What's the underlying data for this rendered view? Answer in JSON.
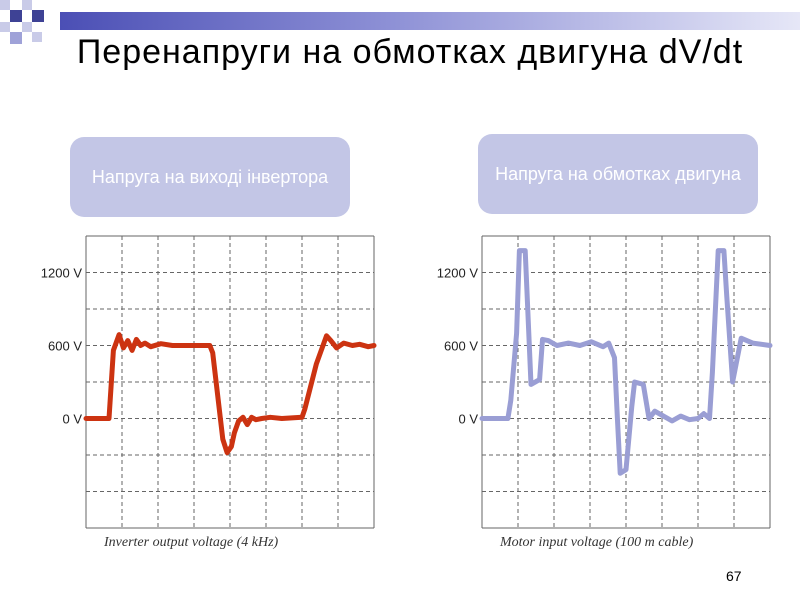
{
  "slide": {
    "title": "Перенапруги на обмотках двигуна dV/dt",
    "page_number": "67",
    "colors": {
      "accent_bar": "#4b4fb5",
      "pill_bg": "#c3c6e6",
      "pill_text": "#ffffff"
    },
    "decor_icon": "squares-pattern"
  },
  "labels": {
    "inverter": "Напруга на виході інвертора",
    "motor": "Напруга на обмотках двигуна"
  },
  "chart_data": [
    {
      "type": "line",
      "title": "",
      "caption": "Inverter output voltage (4 kHz)",
      "xlabel": "",
      "ylabel": "",
      "y_ticks": [
        "1200 V",
        "600 V",
        "0 V"
      ],
      "ylim": [
        -900,
        1500
      ],
      "xlim": [
        0,
        1
      ],
      "grid": true,
      "color": "#cc3311",
      "series": [
        {
          "x": [
            0,
            0.08,
            0.095,
            0.115,
            0.13,
            0.145,
            0.16,
            0.175,
            0.19,
            0.205,
            0.225,
            0.26,
            0.3,
            0.43,
            0.44,
            0.475,
            0.49,
            0.505,
            0.515,
            0.53,
            0.545,
            0.56,
            0.575,
            0.59,
            0.61,
            0.64,
            0.68,
            0.75,
            0.76,
            0.8,
            0.835,
            0.85,
            0.87,
            0.895,
            0.925,
            0.95,
            0.98,
            1.0
          ],
          "y": [
            0,
            0,
            560,
            690,
            580,
            640,
            560,
            650,
            600,
            620,
            590,
            615,
            600,
            600,
            540,
            -170,
            -280,
            -230,
            -120,
            -20,
            10,
            -50,
            10,
            -10,
            0,
            10,
            0,
            10,
            80,
            450,
            680,
            640,
            580,
            620,
            600,
            610,
            590,
            600
          ]
        }
      ]
    },
    {
      "type": "line",
      "title": "",
      "caption": "Motor input voltage (100 m cable)",
      "xlabel": "",
      "ylabel": "",
      "y_ticks": [
        "1200 V",
        "600 V",
        "0 V"
      ],
      "ylim": [
        -900,
        1500
      ],
      "xlim": [
        0,
        1
      ],
      "grid": true,
      "color": "#9a9ed4",
      "series": [
        {
          "x": [
            0,
            0.09,
            0.1,
            0.12,
            0.13,
            0.15,
            0.17,
            0.2,
            0.21,
            0.23,
            0.26,
            0.3,
            0.34,
            0.38,
            0.42,
            0.44,
            0.46,
            0.47,
            0.48,
            0.5,
            0.52,
            0.53,
            0.56,
            0.58,
            0.6,
            0.63,
            0.66,
            0.69,
            0.72,
            0.75,
            0.77,
            0.79,
            0.8,
            0.82,
            0.84,
            0.85,
            0.87,
            0.9,
            0.94,
            1.0
          ],
          "y": [
            0,
            0,
            150,
            700,
            1380,
            1380,
            280,
            320,
            650,
            640,
            600,
            620,
            600,
            630,
            590,
            620,
            500,
            0,
            -450,
            -420,
            100,
            300,
            280,
            0,
            60,
            20,
            -20,
            20,
            -10,
            0,
            40,
            0,
            380,
            1380,
            1380,
            1000,
            300,
            660,
            620,
            600
          ]
        }
      ]
    }
  ]
}
